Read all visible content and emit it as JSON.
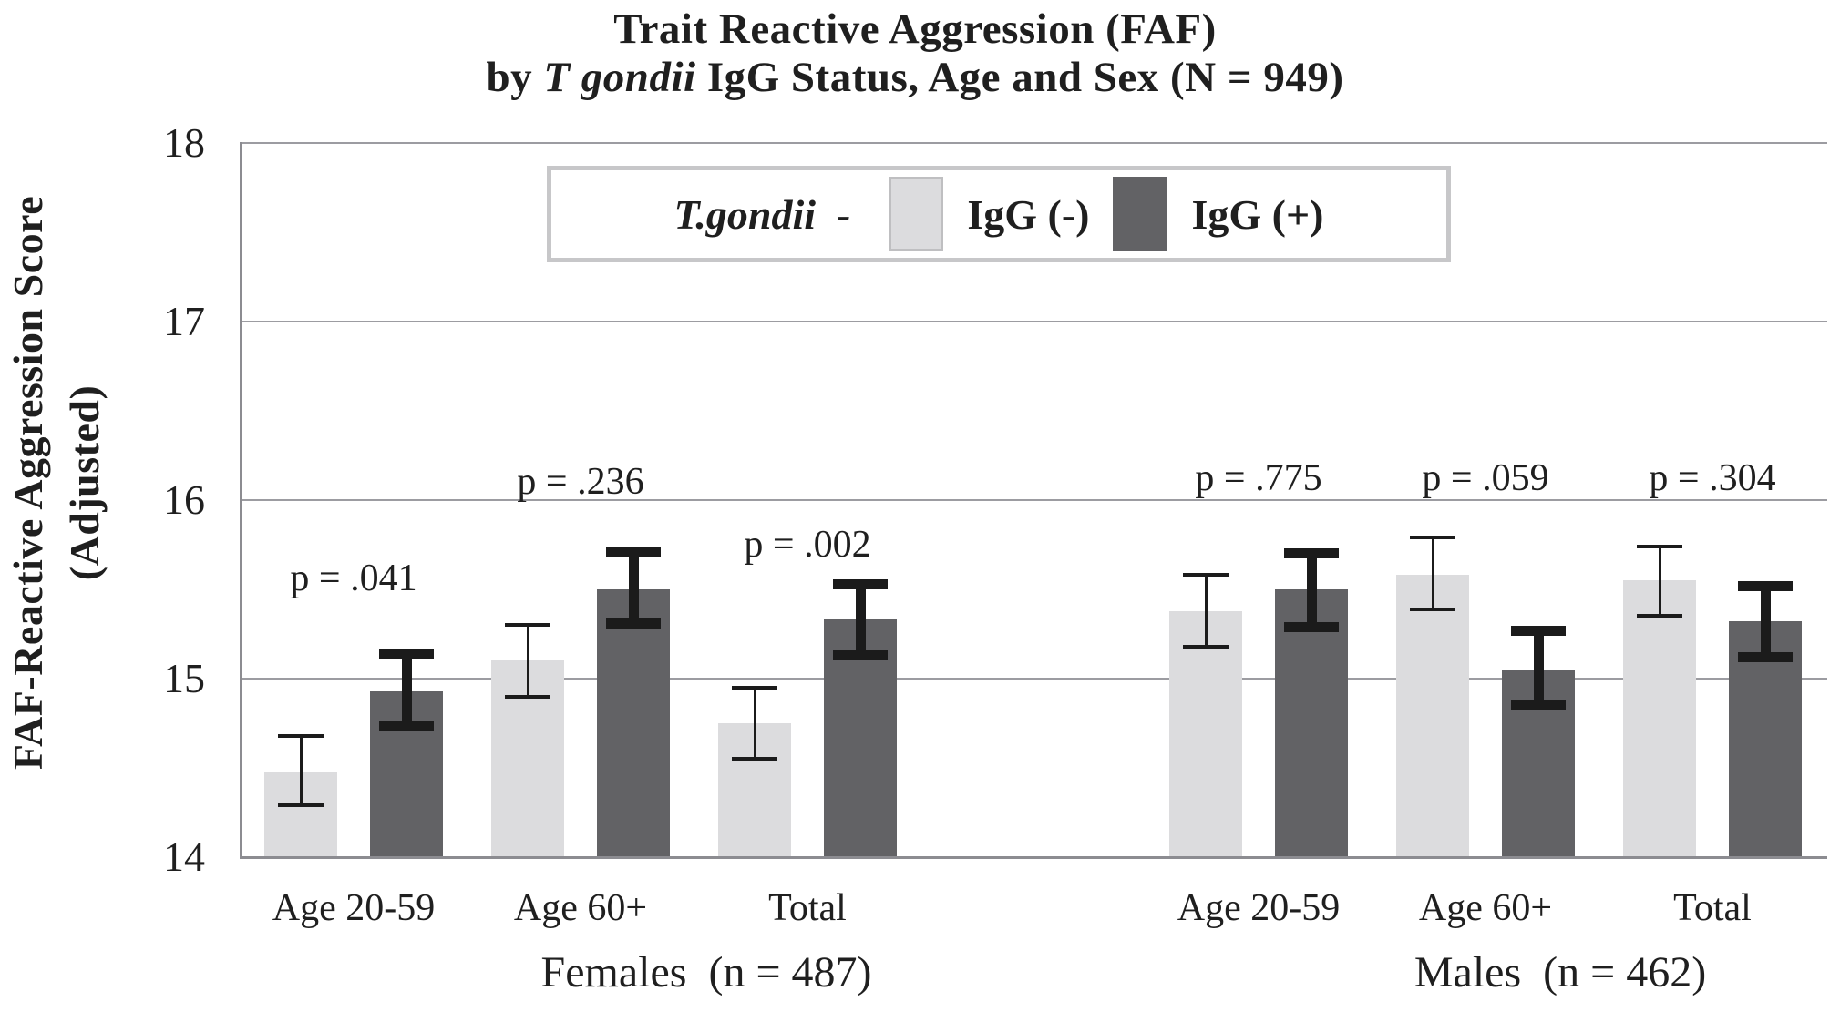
{
  "chart_data": {
    "type": "bar",
    "title": {
      "line1": "Trait Reactive Aggression (FAF)",
      "line2_prefix": "by ",
      "line2_italic": "T gondii",
      "line2_suffix": " IgG Status, Age and Sex (N = 949)"
    },
    "ylabel_line1": "FAF-Reactive Aggression Score",
    "ylabel_line2": "(Adjusted)",
    "ylim": [
      14,
      18
    ],
    "yticks": [
      18,
      17,
      16,
      15,
      14
    ],
    "grid": true,
    "legend": {
      "position": "top-center",
      "title": "T.gondii  -",
      "entries": [
        {
          "label": "IgG (-)",
          "color": "#dcdcde",
          "swatch_border": "#bfbfc1"
        },
        {
          "label": "IgG (+)",
          "color": "#626265",
          "swatch_border": "#626265"
        }
      ]
    },
    "series": [
      {
        "name": "IgG (-)",
        "color": "#dcdcde",
        "error_style": "thin"
      },
      {
        "name": "IgG (+)",
        "color": "#626265",
        "error_style": "thick"
      }
    ],
    "groups": [
      {
        "label": "Females  (n = 487)",
        "categories": [
          {
            "label": "Age 20-59",
            "p_label": "p = .041",
            "p_value_y": 15.56,
            "bars": [
              {
                "series": "IgG (-)",
                "value": 14.48,
                "err_low": 14.29,
                "err_high": 14.68
              },
              {
                "series": "IgG (+)",
                "value": 14.93,
                "err_low": 14.73,
                "err_high": 15.14
              }
            ]
          },
          {
            "label": "Age 60+",
            "p_label": "p = .236",
            "p_value_y": 16.1,
            "bars": [
              {
                "series": "IgG (-)",
                "value": 15.1,
                "err_low": 14.9,
                "err_high": 15.3
              },
              {
                "series": "IgG (+)",
                "value": 15.5,
                "err_low": 15.31,
                "err_high": 15.71
              }
            ]
          },
          {
            "label": "Total",
            "p_label": "p = .002",
            "p_value_y": 15.75,
            "bars": [
              {
                "series": "IgG (-)",
                "value": 14.75,
                "err_low": 14.55,
                "err_high": 14.95
              },
              {
                "series": "IgG (+)",
                "value": 15.33,
                "err_low": 15.13,
                "err_high": 15.53
              }
            ]
          }
        ]
      },
      {
        "label": "Males  (n = 462)",
        "categories": [
          {
            "label": "Age 20-59",
            "p_label": "p = .775",
            "p_value_y": 16.12,
            "bars": [
              {
                "series": "IgG (-)",
                "value": 15.38,
                "err_low": 15.18,
                "err_high": 15.58
              },
              {
                "series": "IgG (+)",
                "value": 15.5,
                "err_low": 15.29,
                "err_high": 15.7
              }
            ]
          },
          {
            "label": "Age 60+",
            "p_label": "p = .059",
            "p_value_y": 16.12,
            "bars": [
              {
                "series": "IgG (-)",
                "value": 15.58,
                "err_low": 15.39,
                "err_high": 15.79
              },
              {
                "series": "IgG (+)",
                "value": 15.05,
                "err_low": 14.85,
                "err_high": 15.27
              }
            ]
          },
          {
            "label": "Total",
            "p_label": "p = .304",
            "p_value_y": 16.12,
            "bars": [
              {
                "series": "IgG (-)",
                "value": 15.55,
                "err_low": 15.35,
                "err_high": 15.74
              },
              {
                "series": "IgG (+)",
                "value": 15.32,
                "err_low": 15.12,
                "err_high": 15.52
              }
            ]
          }
        ]
      }
    ],
    "colors": {
      "text": "#1f1f1f",
      "grid": "#9c9ca1",
      "axis": "#8c8c91",
      "error_bar": "#1b1b1b",
      "background": "#ffffff"
    }
  }
}
